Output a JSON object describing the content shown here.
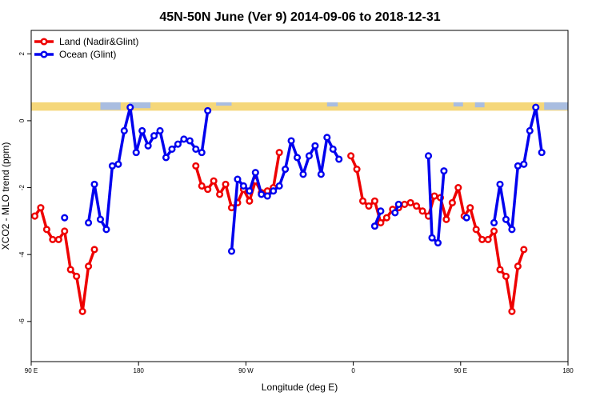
{
  "chart_data": {
    "type": "line",
    "title": "45N-50N June (Ver 9)   2014-09-06 to 2018-12-31",
    "xlabel": "Longitude (deg E)",
    "ylabel": "XCO2 - MLO trend (ppm)",
    "x_tick_labels": [
      "90 E",
      "180",
      "90 W",
      "0",
      "90 E",
      "180"
    ],
    "x_ticks": [
      90,
      180,
      270,
      360,
      450,
      540
    ],
    "xlim": [
      90,
      540
    ],
    "y_ticks": [
      -6,
      -4,
      -2,
      0,
      2
    ],
    "y_tick_labels": [
      "-6",
      "-4",
      "-2",
      "0",
      "2"
    ],
    "ylim": [
      -7.2,
      2.7
    ],
    "grid": false,
    "legend_position": "top-left",
    "land_ocean_band": {
      "y_range": [
        0.3,
        0.55
      ],
      "land_color": "#f5d77a",
      "ocean_color": "#a9bde0"
    },
    "series": [
      {
        "name": "Land (Nadir&Glint)",
        "color": "#ee0000",
        "segments": [
          [
            [
              93,
              -2.85
            ],
            [
              98,
              -2.6
            ],
            [
              103,
              -3.25
            ],
            [
              108,
              -3.55
            ],
            [
              113,
              -3.55
            ],
            [
              118,
              -3.3
            ],
            [
              123,
              -4.45
            ],
            [
              128,
              -4.65
            ],
            [
              133,
              -5.7
            ],
            [
              138,
              -4.35
            ],
            [
              143,
              -3.85
            ]
          ],
          [
            [
              228,
              -1.35
            ],
            [
              233,
              -1.95
            ],
            [
              238,
              -2.05
            ],
            [
              243,
              -1.8
            ],
            [
              248,
              -2.2
            ],
            [
              253,
              -1.9
            ],
            [
              258,
              -2.6
            ],
            [
              263,
              -2.45
            ],
            [
              268,
              -2.05
            ],
            [
              273,
              -2.4
            ],
            [
              278,
              -1.8
            ],
            [
              283,
              -2.15
            ],
            [
              288,
              -2.1
            ],
            [
              293,
              -2.0
            ],
            [
              298,
              -0.95
            ]
          ],
          [
            [
              358,
              -1.05
            ],
            [
              363,
              -1.45
            ],
            [
              368,
              -2.4
            ],
            [
              373,
              -2.55
            ],
            [
              378,
              -2.4
            ],
            [
              383,
              -3.05
            ],
            [
              388,
              -2.9
            ],
            [
              393,
              -2.65
            ],
            [
              398,
              -2.6
            ],
            [
              403,
              -2.5
            ],
            [
              408,
              -2.45
            ],
            [
              413,
              -2.55
            ],
            [
              418,
              -2.7
            ],
            [
              423,
              -2.85
            ],
            [
              428,
              -2.25
            ],
            [
              433,
              -2.3
            ],
            [
              438,
              -2.95
            ],
            [
              443,
              -2.45
            ],
            [
              448,
              -2.0
            ],
            [
              453,
              -2.85
            ],
            [
              458,
              -2.6
            ],
            [
              463,
              -3.25
            ],
            [
              468,
              -3.55
            ],
            [
              473,
              -3.55
            ],
            [
              478,
              -3.3
            ],
            [
              483,
              -4.45
            ],
            [
              488,
              -4.65
            ],
            [
              493,
              -5.7
            ],
            [
              498,
              -4.35
            ],
            [
              503,
              -3.85
            ]
          ]
        ]
      },
      {
        "name": "Ocean (Glint)",
        "color": "#0000ee",
        "segments": [
          [
            [
              118,
              -2.9
            ]
          ],
          [
            [
              138,
              -3.05
            ],
            [
              143,
              -1.9
            ],
            [
              148,
              -2.95
            ],
            [
              153,
              -3.25
            ],
            [
              158,
              -1.35
            ],
            [
              163,
              -1.3
            ],
            [
              168,
              -0.3
            ],
            [
              173,
              0.4
            ],
            [
              178,
              -0.95
            ],
            [
              183,
              -0.3
            ],
            [
              188,
              -0.75
            ],
            [
              193,
              -0.45
            ],
            [
              198,
              -0.3
            ],
            [
              203,
              -1.1
            ],
            [
              208,
              -0.85
            ],
            [
              213,
              -0.7
            ],
            [
              218,
              -0.55
            ],
            [
              223,
              -0.6
            ],
            [
              228,
              -0.85
            ],
            [
              233,
              -0.95
            ],
            [
              238,
              0.3
            ]
          ],
          [
            [
              258,
              -3.9
            ],
            [
              263,
              -1.75
            ],
            [
              268,
              -1.95
            ],
            [
              273,
              -2.1
            ],
            [
              278,
              -1.55
            ],
            [
              283,
              -2.2
            ],
            [
              288,
              -2.25
            ],
            [
              293,
              -2.1
            ],
            [
              298,
              -1.95
            ],
            [
              303,
              -1.45
            ],
            [
              308,
              -0.6
            ],
            [
              313,
              -1.1
            ],
            [
              318,
              -1.6
            ],
            [
              323,
              -1.05
            ],
            [
              328,
              -0.75
            ],
            [
              333,
              -1.6
            ],
            [
              338,
              -0.5
            ],
            [
              343,
              -0.85
            ],
            [
              348,
              -1.15
            ]
          ],
          [
            [
              378,
              -3.15
            ],
            [
              383,
              -2.7
            ]
          ],
          [
            [
              395,
              -2.75
            ],
            [
              398,
              -2.5
            ]
          ],
          [
            [
              423,
              -1.05
            ],
            [
              426,
              -3.5
            ],
            [
              431,
              -3.65
            ],
            [
              436,
              -1.5
            ]
          ],
          [
            [
              455,
              -2.9
            ]
          ],
          [
            [
              478,
              -3.05
            ],
            [
              483,
              -1.9
            ],
            [
              488,
              -2.95
            ],
            [
              493,
              -3.25
            ],
            [
              498,
              -1.35
            ],
            [
              503,
              -1.3
            ],
            [
              508,
              -0.3
            ],
            [
              513,
              0.4
            ],
            [
              518,
              -0.95
            ]
          ]
        ]
      }
    ]
  }
}
